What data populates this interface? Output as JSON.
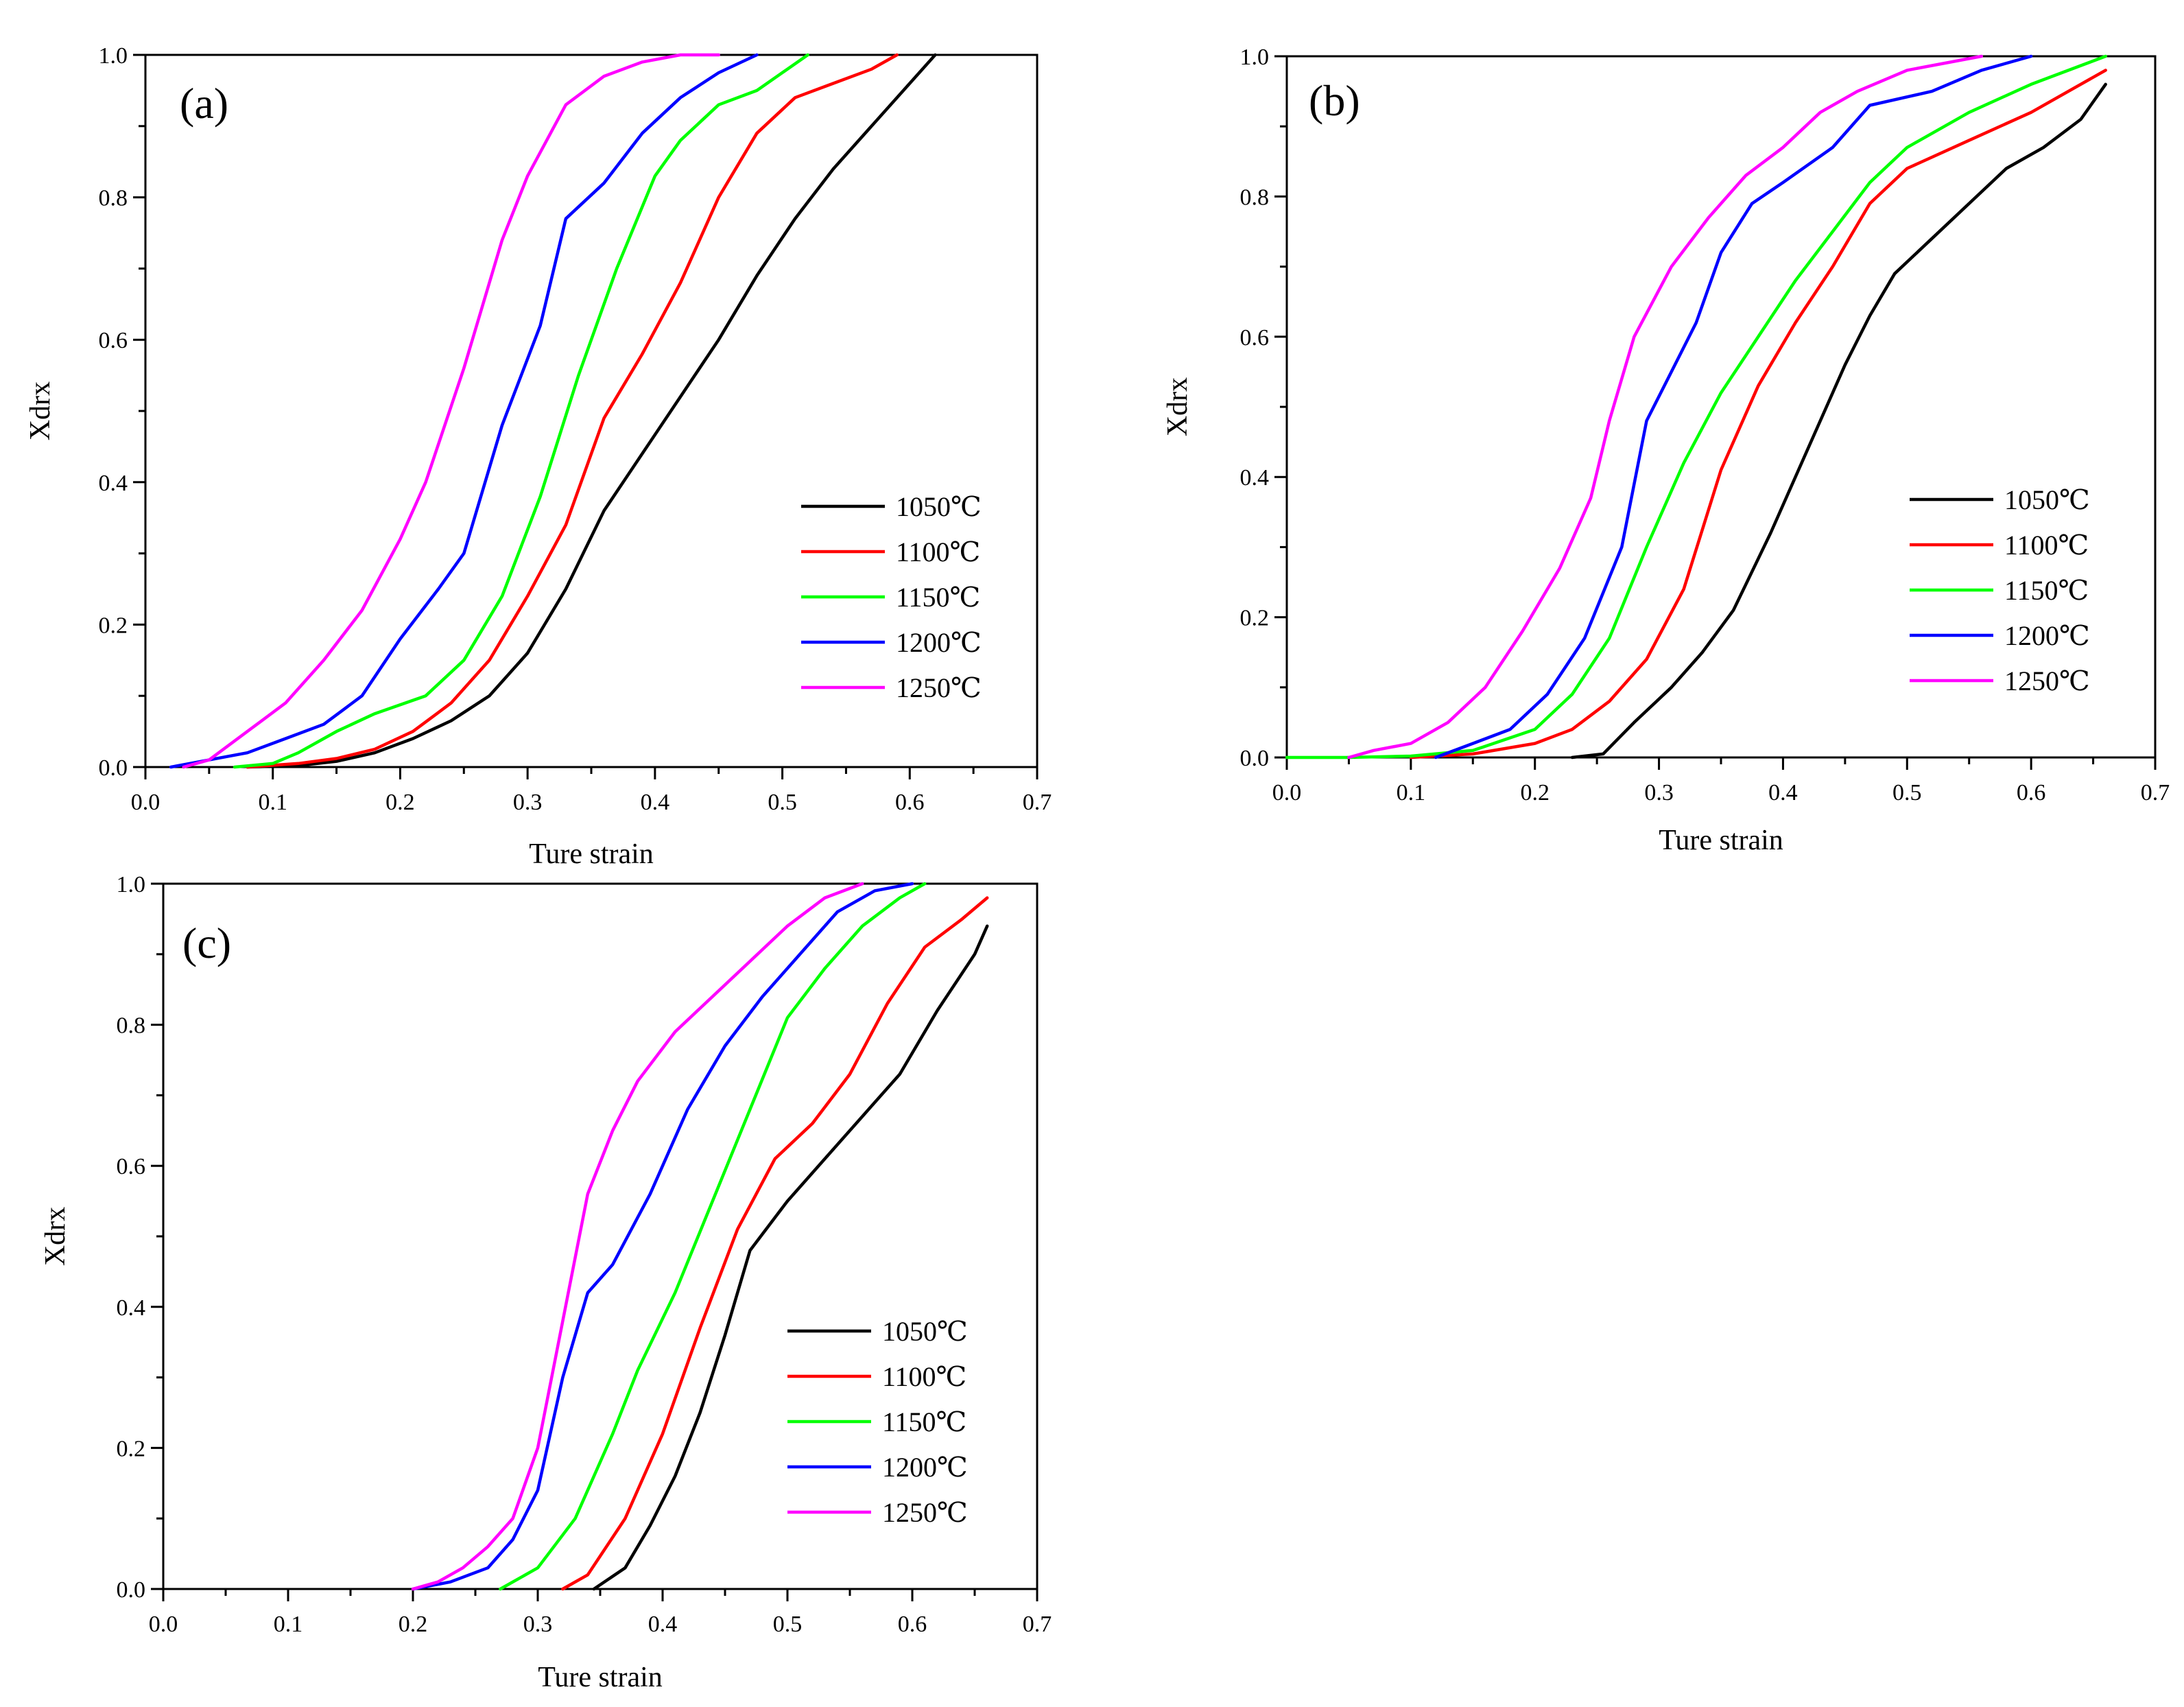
{
  "chart_data": [
    {
      "type": "line",
      "panel_label": "(a)",
      "xlabel": "Ture strain",
      "ylabel": "Xdrx",
      "xlim": [
        0,
        0.7
      ],
      "ylim": [
        0,
        1.0
      ],
      "xticks": [
        "0.0",
        "0.1",
        "0.2",
        "0.3",
        "0.4",
        "0.5",
        "0.6",
        "0.7"
      ],
      "yticks": [
        "0.0",
        "0.2",
        "0.4",
        "0.6",
        "0.8",
        "1.0"
      ],
      "legend_position": "right-middle",
      "series": [
        {
          "name": "1050℃",
          "color": "#000000",
          "points": [
            [
              0.08,
              0
            ],
            [
              0.12,
              0.002
            ],
            [
              0.15,
              0.008
            ],
            [
              0.18,
              0.02
            ],
            [
              0.21,
              0.04
            ],
            [
              0.24,
              0.065
            ],
            [
              0.27,
              0.1
            ],
            [
              0.3,
              0.16
            ],
            [
              0.33,
              0.25
            ],
            [
              0.36,
              0.36
            ],
            [
              0.39,
              0.44
            ],
            [
              0.42,
              0.52
            ],
            [
              0.45,
              0.6
            ],
            [
              0.48,
              0.69
            ],
            [
              0.51,
              0.77
            ],
            [
              0.54,
              0.84
            ],
            [
              0.57,
              0.9
            ],
            [
              0.6,
              0.96
            ],
            [
              0.62,
              1.0
            ]
          ]
        },
        {
          "name": "1100℃",
          "color": "#ff0000",
          "points": [
            [
              0.08,
              0
            ],
            [
              0.12,
              0.005
            ],
            [
              0.15,
              0.012
            ],
            [
              0.18,
              0.025
            ],
            [
              0.21,
              0.05
            ],
            [
              0.24,
              0.09
            ],
            [
              0.27,
              0.15
            ],
            [
              0.3,
              0.24
            ],
            [
              0.33,
              0.34
            ],
            [
              0.36,
              0.49
            ],
            [
              0.39,
              0.58
            ],
            [
              0.42,
              0.68
            ],
            [
              0.45,
              0.8
            ],
            [
              0.48,
              0.89
            ],
            [
              0.51,
              0.94
            ],
            [
              0.54,
              0.96
            ],
            [
              0.57,
              0.98
            ],
            [
              0.59,
              1.0
            ]
          ]
        },
        {
          "name": "1150℃",
          "color": "#00ff00",
          "points": [
            [
              0.07,
              0
            ],
            [
              0.1,
              0.005
            ],
            [
              0.12,
              0.02
            ],
            [
              0.15,
              0.05
            ],
            [
              0.18,
              0.075
            ],
            [
              0.22,
              0.1
            ],
            [
              0.25,
              0.15
            ],
            [
              0.28,
              0.24
            ],
            [
              0.31,
              0.38
            ],
            [
              0.34,
              0.55
            ],
            [
              0.37,
              0.7
            ],
            [
              0.4,
              0.83
            ],
            [
              0.42,
              0.88
            ],
            [
              0.45,
              0.93
            ],
            [
              0.48,
              0.95
            ],
            [
              0.52,
              1.0
            ]
          ]
        },
        {
          "name": "1200℃",
          "color": "#0000ff",
          "points": [
            [
              0.02,
              0
            ],
            [
              0.05,
              0.01
            ],
            [
              0.08,
              0.02
            ],
            [
              0.11,
              0.04
            ],
            [
              0.14,
              0.06
            ],
            [
              0.17,
              0.1
            ],
            [
              0.2,
              0.18
            ],
            [
              0.23,
              0.25
            ],
            [
              0.25,
              0.3
            ],
            [
              0.28,
              0.48
            ],
            [
              0.31,
              0.62
            ],
            [
              0.33,
              0.77
            ],
            [
              0.36,
              0.82
            ],
            [
              0.39,
              0.89
            ],
            [
              0.42,
              0.94
            ],
            [
              0.45,
              0.975
            ],
            [
              0.48,
              1.0
            ]
          ]
        },
        {
          "name": "1250℃",
          "color": "#ff00ff",
          "points": [
            [
              0.03,
              0
            ],
            [
              0.05,
              0.01
            ],
            [
              0.08,
              0.05
            ],
            [
              0.11,
              0.09
            ],
            [
              0.14,
              0.15
            ],
            [
              0.17,
              0.22
            ],
            [
              0.2,
              0.32
            ],
            [
              0.22,
              0.4
            ],
            [
              0.25,
              0.56
            ],
            [
              0.28,
              0.74
            ],
            [
              0.3,
              0.83
            ],
            [
              0.33,
              0.93
            ],
            [
              0.36,
              0.97
            ],
            [
              0.39,
              0.99
            ],
            [
              0.42,
              1.0
            ],
            [
              0.45,
              1.0
            ]
          ]
        }
      ]
    },
    {
      "type": "line",
      "panel_label": "(b)",
      "xlabel": "Ture strain",
      "ylabel": "Xdrx",
      "xlim": [
        0,
        0.7
      ],
      "ylim": [
        0,
        1.0
      ],
      "xticks": [
        "0.0",
        "0.1",
        "0.2",
        "0.3",
        "0.4",
        "0.5",
        "0.6",
        "0.7"
      ],
      "yticks": [
        "0.0",
        "0.2",
        "0.4",
        "0.6",
        "0.8",
        "1.0"
      ],
      "legend_position": "right-middle",
      "series": [
        {
          "name": "1050℃",
          "color": "#000000",
          "points": [
            [
              0.23,
              0
            ],
            [
              0.255,
              0.005
            ],
            [
              0.28,
              0.05
            ],
            [
              0.31,
              0.1
            ],
            [
              0.335,
              0.15
            ],
            [
              0.36,
              0.21
            ],
            [
              0.39,
              0.32
            ],
            [
              0.42,
              0.44
            ],
            [
              0.45,
              0.56
            ],
            [
              0.47,
              0.63
            ],
            [
              0.49,
              0.69
            ],
            [
              0.52,
              0.74
            ],
            [
              0.55,
              0.79
            ],
            [
              0.58,
              0.84
            ],
            [
              0.61,
              0.87
            ],
            [
              0.64,
              0.91
            ],
            [
              0.66,
              0.96
            ]
          ]
        },
        {
          "name": "1100℃",
          "color": "#ff0000",
          "points": [
            [
              0.1,
              0
            ],
            [
              0.15,
              0.005
            ],
            [
              0.2,
              0.02
            ],
            [
              0.23,
              0.04
            ],
            [
              0.26,
              0.08
            ],
            [
              0.29,
              0.14
            ],
            [
              0.32,
              0.24
            ],
            [
              0.35,
              0.41
            ],
            [
              0.38,
              0.53
            ],
            [
              0.41,
              0.62
            ],
            [
              0.44,
              0.7
            ],
            [
              0.47,
              0.79
            ],
            [
              0.5,
              0.84
            ],
            [
              0.55,
              0.88
            ],
            [
              0.6,
              0.92
            ],
            [
              0.66,
              0.98
            ]
          ]
        },
        {
          "name": "1150℃",
          "color": "#00ff00",
          "points": [
            [
              0.0,
              0
            ],
            [
              0.05,
              0
            ],
            [
              0.1,
              0.002
            ],
            [
              0.15,
              0.01
            ],
            [
              0.2,
              0.04
            ],
            [
              0.23,
              0.09
            ],
            [
              0.26,
              0.17
            ],
            [
              0.29,
              0.3
            ],
            [
              0.32,
              0.42
            ],
            [
              0.35,
              0.52
            ],
            [
              0.38,
              0.6
            ],
            [
              0.41,
              0.68
            ],
            [
              0.44,
              0.75
            ],
            [
              0.47,
              0.82
            ],
            [
              0.5,
              0.87
            ],
            [
              0.55,
              0.92
            ],
            [
              0.6,
              0.96
            ],
            [
              0.66,
              1.0
            ]
          ]
        },
        {
          "name": "1200℃",
          "color": "#0000ff",
          "points": [
            [
              0.12,
              0
            ],
            [
              0.15,
              0.02
            ],
            [
              0.18,
              0.04
            ],
            [
              0.21,
              0.09
            ],
            [
              0.24,
              0.17
            ],
            [
              0.27,
              0.3
            ],
            [
              0.29,
              0.48
            ],
            [
              0.31,
              0.55
            ],
            [
              0.33,
              0.62
            ],
            [
              0.35,
              0.72
            ],
            [
              0.375,
              0.79
            ],
            [
              0.4,
              0.82
            ],
            [
              0.44,
              0.87
            ],
            [
              0.47,
              0.93
            ],
            [
              0.52,
              0.95
            ],
            [
              0.56,
              0.98
            ],
            [
              0.6,
              1.0
            ]
          ]
        },
        {
          "name": "1250℃",
          "color": "#ff00ff",
          "points": [
            [
              0.05,
              0
            ],
            [
              0.07,
              0.01
            ],
            [
              0.1,
              0.02
            ],
            [
              0.13,
              0.05
            ],
            [
              0.16,
              0.1
            ],
            [
              0.19,
              0.18
            ],
            [
              0.22,
              0.27
            ],
            [
              0.245,
              0.37
            ],
            [
              0.26,
              0.48
            ],
            [
              0.28,
              0.6
            ],
            [
              0.31,
              0.7
            ],
            [
              0.34,
              0.77
            ],
            [
              0.37,
              0.83
            ],
            [
              0.4,
              0.87
            ],
            [
              0.43,
              0.92
            ],
            [
              0.46,
              0.95
            ],
            [
              0.5,
              0.98
            ],
            [
              0.56,
              1.0
            ]
          ]
        }
      ]
    },
    {
      "type": "line",
      "panel_label": "(c)",
      "xlabel": "Ture strain",
      "ylabel": "Xdrx",
      "xlim": [
        0,
        0.7
      ],
      "ylim": [
        0,
        1.0
      ],
      "xticks": [
        "0.0",
        "0.1",
        "0.2",
        "0.3",
        "0.4",
        "0.5",
        "0.6",
        "0.7"
      ],
      "yticks": [
        "0.0",
        "0.2",
        "0.4",
        "0.6",
        "0.8",
        "1.0"
      ],
      "legend_position": "right-middle",
      "series": [
        {
          "name": "1050℃",
          "color": "#000000",
          "points": [
            [
              0.345,
              0
            ],
            [
              0.37,
              0.03
            ],
            [
              0.39,
              0.09
            ],
            [
              0.41,
              0.16
            ],
            [
              0.43,
              0.25
            ],
            [
              0.45,
              0.36
            ],
            [
              0.47,
              0.48
            ],
            [
              0.5,
              0.55
            ],
            [
              0.53,
              0.61
            ],
            [
              0.56,
              0.67
            ],
            [
              0.59,
              0.73
            ],
            [
              0.62,
              0.82
            ],
            [
              0.65,
              0.9
            ],
            [
              0.66,
              0.94
            ]
          ]
        },
        {
          "name": "1100℃",
          "color": "#ff0000",
          "points": [
            [
              0.32,
              0
            ],
            [
              0.34,
              0.02
            ],
            [
              0.37,
              0.1
            ],
            [
              0.4,
              0.22
            ],
            [
              0.43,
              0.37
            ],
            [
              0.46,
              0.51
            ],
            [
              0.49,
              0.61
            ],
            [
              0.52,
              0.66
            ],
            [
              0.55,
              0.73
            ],
            [
              0.58,
              0.83
            ],
            [
              0.61,
              0.91
            ],
            [
              0.64,
              0.95
            ],
            [
              0.66,
              0.98
            ]
          ]
        },
        {
          "name": "1150℃",
          "color": "#00ff00",
          "points": [
            [
              0.27,
              0
            ],
            [
              0.3,
              0.03
            ],
            [
              0.33,
              0.1
            ],
            [
              0.36,
              0.22
            ],
            [
              0.38,
              0.31
            ],
            [
              0.41,
              0.42
            ],
            [
              0.44,
              0.55
            ],
            [
              0.47,
              0.68
            ],
            [
              0.5,
              0.81
            ],
            [
              0.53,
              0.88
            ],
            [
              0.56,
              0.94
            ],
            [
              0.59,
              0.98
            ],
            [
              0.61,
              1.0
            ]
          ]
        },
        {
          "name": "1200℃",
          "color": "#0000ff",
          "points": [
            [
              0.2,
              0
            ],
            [
              0.23,
              0.01
            ],
            [
              0.26,
              0.03
            ],
            [
              0.28,
              0.07
            ],
            [
              0.3,
              0.14
            ],
            [
              0.32,
              0.3
            ],
            [
              0.34,
              0.42
            ],
            [
              0.36,
              0.46
            ],
            [
              0.39,
              0.56
            ],
            [
              0.42,
              0.68
            ],
            [
              0.45,
              0.77
            ],
            [
              0.48,
              0.84
            ],
            [
              0.51,
              0.9
            ],
            [
              0.54,
              0.96
            ],
            [
              0.57,
              0.99
            ],
            [
              0.6,
              1.0
            ]
          ]
        },
        {
          "name": "1250℃",
          "color": "#ff00ff",
          "points": [
            [
              0.2,
              0
            ],
            [
              0.22,
              0.01
            ],
            [
              0.24,
              0.03
            ],
            [
              0.26,
              0.06
            ],
            [
              0.28,
              0.1
            ],
            [
              0.3,
              0.2
            ],
            [
              0.32,
              0.38
            ],
            [
              0.34,
              0.56
            ],
            [
              0.36,
              0.65
            ],
            [
              0.38,
              0.72
            ],
            [
              0.41,
              0.79
            ],
            [
              0.44,
              0.84
            ],
            [
              0.47,
              0.89
            ],
            [
              0.5,
              0.94
            ],
            [
              0.53,
              0.98
            ],
            [
              0.56,
              1.0
            ]
          ]
        }
      ]
    }
  ]
}
